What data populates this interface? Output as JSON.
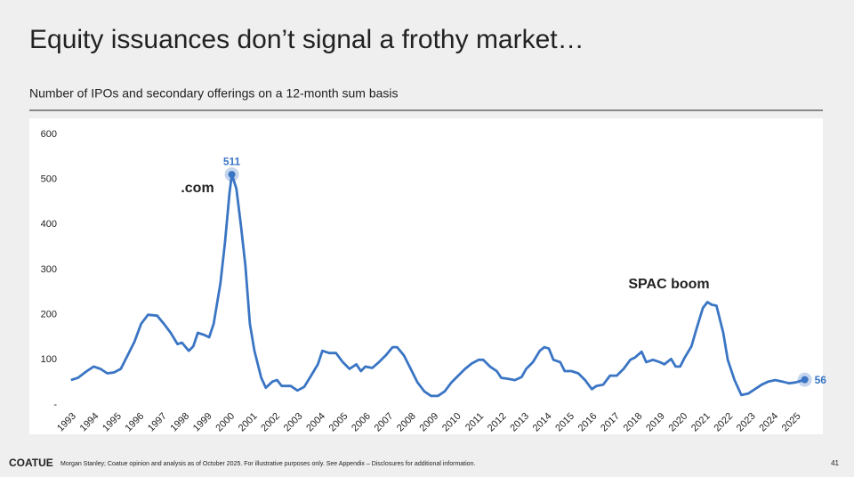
{
  "header": {
    "title": "Equity issuances don’t signal a frothy market…",
    "subtitle": "Number of IPOs and secondary offerings on a 12-month sum basis"
  },
  "chart_data": {
    "type": "line",
    "color": "#3a75c4",
    "annotations": [
      ".com",
      "SPAC boom"
    ],
    "x": [
      1993.0,
      1993.3,
      1993.7,
      1994.0,
      1994.3,
      1994.6,
      1994.9,
      1995.2,
      1995.5,
      1995.8,
      1996.1,
      1996.4,
      1996.8,
      1997.1,
      1997.4,
      1997.7,
      1997.9,
      1998.2,
      1998.4,
      1998.6,
      1998.9,
      1999.1,
      1999.3,
      1999.6,
      1999.8,
      2000.0,
      2000.1,
      2000.3,
      2000.5,
      2000.7,
      2000.9,
      2001.1,
      2001.4,
      2001.6,
      2001.9,
      2002.1,
      2002.3,
      2002.7,
      2003.0,
      2003.3,
      2003.6,
      2003.9,
      2004.1,
      2004.4,
      2004.7,
      2005.0,
      2005.3,
      2005.6,
      2005.8,
      2006.0,
      2006.3,
      2006.6,
      2006.9,
      2007.2,
      2007.4,
      2007.7,
      2008.0,
      2008.3,
      2008.6,
      2008.9,
      2009.2,
      2009.5,
      2009.8,
      2010.1,
      2010.4,
      2010.7,
      2011.0,
      2011.2,
      2011.5,
      2011.8,
      2012.0,
      2012.3,
      2012.6,
      2012.9,
      2013.1,
      2013.4,
      2013.7,
      2013.9,
      2014.1,
      2014.3,
      2014.6,
      2014.8,
      2015.1,
      2015.4,
      2015.7,
      2016.0,
      2016.2,
      2016.5,
      2016.8,
      2017.1,
      2017.4,
      2017.7,
      2017.9,
      2018.2,
      2018.4,
      2018.7,
      2019.0,
      2019.2,
      2019.5,
      2019.7,
      2019.9,
      2020.1,
      2020.4,
      2020.6,
      2020.9,
      2021.1,
      2021.3,
      2021.5,
      2021.8,
      2022.0,
      2022.3,
      2022.6,
      2022.9,
      2023.2,
      2023.5,
      2023.8,
      2024.1,
      2024.4,
      2024.7,
      2025.0,
      2025.4
    ],
    "values": [
      55,
      60,
      75,
      85,
      80,
      70,
      72,
      80,
      110,
      140,
      180,
      200,
      198,
      180,
      160,
      135,
      138,
      120,
      130,
      160,
      155,
      150,
      180,
      270,
      360,
      470,
      511,
      480,
      400,
      310,
      180,
      120,
      60,
      38,
      52,
      55,
      42,
      42,
      32,
      40,
      65,
      90,
      120,
      115,
      115,
      95,
      80,
      90,
      75,
      85,
      82,
      95,
      110,
      128,
      128,
      110,
      80,
      50,
      30,
      20,
      20,
      30,
      50,
      65,
      80,
      92,
      100,
      100,
      85,
      75,
      60,
      58,
      55,
      62,
      80,
      95,
      120,
      128,
      125,
      100,
      95,
      75,
      75,
      70,
      55,
      35,
      42,
      45,
      65,
      65,
      80,
      100,
      105,
      118,
      95,
      100,
      95,
      90,
      102,
      85,
      85,
      105,
      130,
      165,
      215,
      228,
      222,
      220,
      160,
      100,
      55,
      22,
      25,
      35,
      45,
      52,
      55,
      52,
      48,
      50,
      56
    ],
    "xlim": [
      1992.3,
      2026.2
    ],
    "xticks": [
      1993,
      1994,
      1995,
      1996,
      1997,
      1998,
      1999,
      2000,
      2001,
      2002,
      2003,
      2004,
      2005,
      2006,
      2007,
      2008,
      2009,
      2010,
      2011,
      2012,
      2013,
      2014,
      2015,
      2016,
      2017,
      2018,
      2019,
      2020,
      2021,
      2022,
      2023,
      2024,
      2025
    ],
    "ylim": [
      0,
      600
    ],
    "yticks": [
      {
        "value": 0,
        "label": "-"
      },
      100,
      200,
      300,
      400,
      500,
      600
    ]
  },
  "footer": {
    "brand": "COATUE",
    "source": "Morgan Stanley; Coatue opinion and analysis as of October 2025. For illustrative purposes only.  See Appendix – Disclosures for additional information.",
    "page": "41"
  }
}
